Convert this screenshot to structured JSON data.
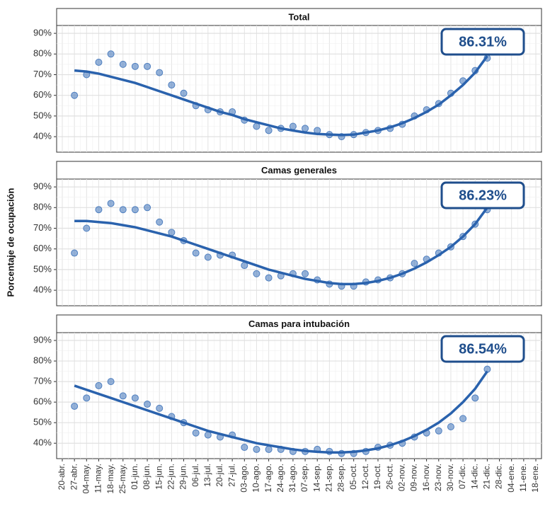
{
  "chart_data": [
    {
      "type": "scatter",
      "title": "Total",
      "annotation": "86.31%",
      "ylim": [
        32.5,
        93.8
      ],
      "yticks": [
        {
          "value": 40,
          "label": "40%"
        },
        {
          "value": 50,
          "label": "50%"
        },
        {
          "value": 60,
          "label": "60%"
        },
        {
          "value": 70,
          "label": "70%"
        },
        {
          "value": 80,
          "label": "80%"
        },
        {
          "value": 90,
          "label": "90%"
        }
      ],
      "grid": true,
      "color": "#4f7fbf",
      "trend_color": "#2a62ad",
      "values": [
        null,
        60,
        70,
        76,
        80,
        75,
        74,
        74,
        71,
        65,
        61,
        55,
        53,
        52,
        52,
        48,
        45,
        43,
        44,
        45,
        44,
        43,
        41,
        40,
        41,
        42,
        43,
        44,
        46,
        50,
        53,
        56,
        61,
        67,
        72,
        78,
        null,
        null,
        null,
        null
      ],
      "trend": [
        null,
        72,
        71.5,
        70.5,
        69,
        67.5,
        66,
        64,
        62,
        60,
        58,
        56,
        54,
        52,
        50.5,
        48.5,
        47,
        45.5,
        44,
        43,
        42,
        41.3,
        41,
        40.8,
        41,
        42,
        43,
        44.5,
        46.5,
        49,
        52,
        55.5,
        60,
        65,
        71,
        79,
        null,
        null,
        null,
        null
      ]
    },
    {
      "type": "scatter",
      "title": "Camas generales",
      "annotation": "86.23%",
      "ylabel": "Porcentaje de ocupación",
      "ylim": [
        32.5,
        93.8
      ],
      "yticks": [
        {
          "value": 40,
          "label": "40%"
        },
        {
          "value": 50,
          "label": "50%"
        },
        {
          "value": 60,
          "label": "60%"
        },
        {
          "value": 70,
          "label": "70%"
        },
        {
          "value": 80,
          "label": "80%"
        },
        {
          "value": 90,
          "label": "90%"
        }
      ],
      "grid": true,
      "color": "#4f7fbf",
      "trend_color": "#2a62ad",
      "values": [
        null,
        58,
        70,
        79,
        82,
        79,
        79,
        80,
        73,
        68,
        64,
        58,
        56,
        57,
        57,
        52,
        48,
        46,
        47,
        48,
        48,
        45,
        43,
        42,
        42,
        44,
        45,
        46,
        48,
        53,
        55,
        58,
        61,
        66,
        72,
        79,
        null,
        null,
        null,
        null
      ],
      "trend": [
        null,
        73.5,
        73.5,
        73,
        72.5,
        71.5,
        70.5,
        69,
        67.5,
        66,
        64,
        62,
        60,
        58,
        56,
        54,
        52,
        50,
        48.5,
        47,
        45.5,
        44.5,
        43.5,
        43,
        43,
        43.5,
        44.5,
        46,
        48,
        50.5,
        53.5,
        57,
        61,
        66,
        72,
        80,
        null,
        null,
        null,
        null
      ]
    },
    {
      "type": "scatter",
      "title": "Camas para intubación",
      "annotation": "86.54%",
      "ylim": [
        32.5,
        93.8
      ],
      "yticks": [
        {
          "value": 40,
          "label": "40%"
        },
        {
          "value": 50,
          "label": "50%"
        },
        {
          "value": 60,
          "label": "60%"
        },
        {
          "value": 70,
          "label": "70%"
        },
        {
          "value": 80,
          "label": "80%"
        },
        {
          "value": 90,
          "label": "90%"
        }
      ],
      "grid": true,
      "color": "#4f7fbf",
      "trend_color": "#2a62ad",
      "categories": [
        "20-abr.",
        "27-abr.",
        "04-may.",
        "11-may.",
        "18-may.",
        "25-may.",
        "01-jun.",
        "08-jun.",
        "15-jun.",
        "22-jun.",
        "29-jun.",
        "06-jul.",
        "13-jul.",
        "20-jul.",
        "27-jul.",
        "03-ago.",
        "10-ago.",
        "17-ago.",
        "24-ago.",
        "31-ago.",
        "07-sep.",
        "14-sep.",
        "21-sep.",
        "28-sep.",
        "05-oct.",
        "12-oct.",
        "19-oct.",
        "26-oct.",
        "02-nov.",
        "09-nov.",
        "16-nov.",
        "23-nov.",
        "30-nov.",
        "07-dic.",
        "14-dic.",
        "21-dic.",
        "28-dic.",
        "04-ene.",
        "11-ene.",
        "18-ene."
      ],
      "values": [
        null,
        58,
        62,
        68,
        70,
        63,
        62,
        59,
        57,
        53,
        50,
        45,
        44,
        43,
        44,
        38,
        37,
        37,
        37,
        36,
        36,
        37,
        36,
        35,
        35,
        36,
        38,
        39,
        40,
        43,
        45,
        46,
        48,
        52,
        62,
        76,
        null,
        null,
        null,
        null
      ],
      "trend": [
        null,
        68,
        66,
        64,
        62,
        60,
        58,
        56,
        54,
        52,
        50,
        48,
        46,
        44.5,
        43,
        41.5,
        40,
        39,
        38,
        37,
        36.3,
        35.8,
        35.5,
        35.5,
        35.8,
        36.5,
        37.5,
        39,
        41,
        43.5,
        46.5,
        50,
        54.5,
        60,
        66.5,
        75,
        null,
        null,
        null,
        null
      ]
    }
  ]
}
